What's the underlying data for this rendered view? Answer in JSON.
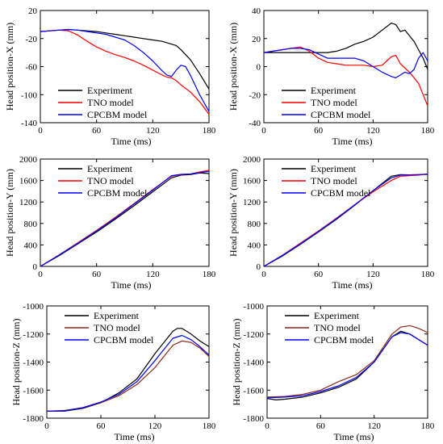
{
  "chart_data": [
    {
      "type": "line",
      "xlabel": "Time (ms)",
      "ylabel": "Head position-X (mm)",
      "xlim": [
        0,
        180
      ],
      "ylim": [
        -140,
        20
      ],
      "xticks": [
        0,
        60,
        120,
        180
      ],
      "yticks": [
        20,
        -20,
        -60,
        -100,
        -140
      ],
      "legend_position": "bottom-left",
      "series": [
        {
          "name": "Experiment",
          "color": "#000000",
          "x": [
            0,
            10,
            20,
            30,
            40,
            50,
            60,
            70,
            80,
            90,
            100,
            110,
            120,
            130,
            140,
            145,
            150,
            160,
            170,
            180
          ],
          "y": [
            -10,
            -9,
            -8,
            -7,
            -8,
            -9,
            -10,
            -12,
            -14,
            -16,
            -18,
            -20,
            -22,
            -24,
            -28,
            -30,
            -36,
            -50,
            -70,
            -92
          ]
        },
        {
          "name": "TNO model",
          "color": "#ff0000",
          "x": [
            0,
            10,
            20,
            30,
            40,
            50,
            60,
            70,
            80,
            90,
            100,
            110,
            120,
            130,
            135,
            140,
            145,
            150,
            160,
            170,
            180
          ],
          "y": [
            -10,
            -9,
            -8,
            -9,
            -15,
            -24,
            -32,
            -38,
            -43,
            -47,
            -52,
            -58,
            -65,
            -72,
            -75,
            -76,
            -80,
            -86,
            -96,
            -110,
            -128
          ]
        },
        {
          "name": "CPCBM model",
          "color": "#0000ff",
          "x": [
            0,
            10,
            20,
            30,
            40,
            50,
            60,
            70,
            80,
            90,
            100,
            110,
            120,
            130,
            135,
            140,
            145,
            150,
            155,
            160,
            170,
            180
          ],
          "y": [
            -10,
            -9,
            -8,
            -7,
            -8,
            -10,
            -12,
            -14,
            -18,
            -22,
            -30,
            -40,
            -52,
            -66,
            -72,
            -74,
            -65,
            -58,
            -60,
            -72,
            -100,
            -124
          ]
        }
      ]
    },
    {
      "type": "line",
      "xlabel": "Time (ms)",
      "ylabel": "Head position-X (mm)",
      "xlim": [
        0,
        180
      ],
      "ylim": [
        -40,
        40
      ],
      "xticks": [
        0,
        60,
        120,
        180
      ],
      "yticks": [
        40,
        20,
        0,
        -20,
        -40
      ],
      "legend_position": "bottom-left",
      "series": [
        {
          "name": "Experiment",
          "color": "#000000",
          "x": [
            0,
            20,
            40,
            60,
            70,
            80,
            90,
            100,
            110,
            120,
            130,
            140,
            145,
            150,
            155,
            160,
            165,
            170,
            175,
            180
          ],
          "y": [
            10,
            10,
            10,
            10,
            10,
            11,
            13,
            16,
            18,
            21,
            26,
            31,
            30,
            25,
            26,
            22,
            18,
            12,
            6,
            -2
          ]
        },
        {
          "name": "TNO model",
          "color": "#ff0000",
          "x": [
            0,
            10,
            20,
            30,
            40,
            50,
            60,
            70,
            80,
            90,
            100,
            110,
            120,
            130,
            135,
            140,
            145,
            150,
            160,
            170,
            180
          ],
          "y": [
            10,
            11,
            12,
            13,
            14,
            11,
            6,
            3,
            2,
            1,
            1,
            1,
            0,
            1,
            4,
            7,
            8,
            2,
            -4,
            -12,
            -28
          ]
        },
        {
          "name": "CPCBM model",
          "color": "#0000ff",
          "x": [
            0,
            10,
            20,
            30,
            40,
            50,
            60,
            70,
            80,
            90,
            100,
            110,
            120,
            130,
            140,
            145,
            150,
            155,
            160,
            165,
            170,
            175,
            180
          ],
          "y": [
            10,
            11,
            12,
            13,
            13,
            12,
            9,
            6,
            6,
            6,
            6,
            4,
            0,
            -4,
            -7,
            -8,
            -6,
            -4,
            -5,
            -2,
            6,
            10,
            4
          ]
        }
      ]
    },
    {
      "type": "line",
      "xlabel": "Time (ms)",
      "ylabel": "Head position-Y (mm)",
      "xlim": [
        0,
        180
      ],
      "ylim": [
        0,
        2000
      ],
      "xticks": [
        0,
        60,
        120,
        180
      ],
      "yticks": [
        2000,
        1600,
        1200,
        800,
        400,
        0
      ],
      "legend_position": "top-left",
      "series": [
        {
          "name": "Experiment",
          "color": "#000000",
          "x": [
            0,
            20,
            40,
            60,
            80,
            100,
            120,
            140,
            150,
            160,
            170,
            180
          ],
          "y": [
            0,
            200,
            420,
            640,
            880,
            1130,
            1390,
            1650,
            1700,
            1710,
            1740,
            1730
          ]
        },
        {
          "name": "TNO model",
          "color": "#ff0000",
          "x": [
            0,
            20,
            40,
            60,
            80,
            100,
            120,
            140,
            150,
            160,
            170,
            180
          ],
          "y": [
            0,
            215,
            440,
            670,
            915,
            1170,
            1430,
            1680,
            1710,
            1720,
            1760,
            1790
          ]
        },
        {
          "name": "CPCBM model",
          "color": "#0000ff",
          "x": [
            0,
            20,
            40,
            60,
            80,
            100,
            120,
            140,
            150,
            160,
            170,
            180
          ],
          "y": [
            0,
            210,
            430,
            660,
            900,
            1160,
            1420,
            1690,
            1715,
            1720,
            1745,
            1770
          ]
        }
      ]
    },
    {
      "type": "line",
      "xlabel": "Time (ms)",
      "ylabel": "Head position-Y (mm)",
      "xlim": [
        0,
        180
      ],
      "ylim": [
        0,
        2000
      ],
      "xticks": [
        0,
        60,
        120,
        180
      ],
      "yticks": [
        2000,
        1600,
        1200,
        800,
        400,
        0
      ],
      "legend_position": "top-left",
      "series": [
        {
          "name": "Experiment",
          "color": "#000000",
          "x": [
            0,
            20,
            40,
            60,
            80,
            100,
            120,
            140,
            150,
            160,
            170,
            180
          ],
          "y": [
            0,
            190,
            410,
            640,
            880,
            1140,
            1410,
            1680,
            1710,
            1705,
            1710,
            1715
          ]
        },
        {
          "name": "TNO model",
          "color": "#ff0000",
          "x": [
            0,
            20,
            40,
            60,
            80,
            100,
            120,
            140,
            150,
            160,
            170,
            180
          ],
          "y": [
            0,
            205,
            430,
            660,
            900,
            1150,
            1390,
            1600,
            1680,
            1690,
            1700,
            1720
          ]
        },
        {
          "name": "CPCBM model",
          "color": "#0000ff",
          "x": [
            0,
            20,
            40,
            60,
            80,
            100,
            120,
            140,
            150,
            160,
            170,
            180
          ],
          "y": [
            0,
            200,
            420,
            650,
            890,
            1150,
            1410,
            1650,
            1700,
            1705,
            1710,
            1720
          ]
        }
      ]
    },
    {
      "type": "line",
      "xlabel": "Time (ms)",
      "ylabel": "Head position-Z (mm)",
      "xlim": [
        0,
        180
      ],
      "ylim": [
        -1800,
        -1000
      ],
      "xticks": [
        0,
        60,
        120,
        180
      ],
      "yticks": [
        -1000,
        -1200,
        -1400,
        -1600,
        -1800
      ],
      "legend_position": "top-left",
      "series": [
        {
          "name": "Experiment",
          "color": "#000000",
          "x": [
            0,
            20,
            40,
            60,
            80,
            100,
            120,
            140,
            145,
            150,
            160,
            170,
            180
          ],
          "y": [
            -1750,
            -1750,
            -1730,
            -1690,
            -1620,
            -1520,
            -1340,
            -1180,
            -1160,
            -1160,
            -1200,
            -1250,
            -1290
          ]
        },
        {
          "name": "TNO model",
          "color": "#8b2a1a",
          "x": [
            0,
            20,
            40,
            60,
            80,
            100,
            120,
            140,
            150,
            160,
            170,
            180
          ],
          "y": [
            -1750,
            -1745,
            -1725,
            -1690,
            -1640,
            -1560,
            -1440,
            -1280,
            -1250,
            -1260,
            -1300,
            -1360
          ]
        },
        {
          "name": "CPCBM model",
          "color": "#0000ff",
          "x": [
            0,
            20,
            40,
            60,
            80,
            100,
            120,
            140,
            150,
            160,
            170,
            180
          ],
          "y": [
            -1750,
            -1748,
            -1725,
            -1685,
            -1630,
            -1540,
            -1390,
            -1230,
            -1210,
            -1240,
            -1290,
            -1350
          ]
        }
      ]
    },
    {
      "type": "line",
      "xlabel": "Time (ms)",
      "ylabel": "Head position-Z (mm)",
      "xlim": [
        0,
        180
      ],
      "ylim": [
        -1800,
        -1000
      ],
      "xticks": [
        0,
        60,
        120,
        180
      ],
      "yticks": [
        -1000,
        -1200,
        -1400,
        -1600,
        -1800
      ],
      "legend_position": "top-left",
      "series": [
        {
          "name": "Experiment",
          "color": "#000000",
          "x": [
            0,
            10,
            20,
            40,
            60,
            80,
            100,
            120,
            140,
            150,
            160,
            170,
            180
          ],
          "y": [
            -1660,
            -1670,
            -1665,
            -1650,
            -1620,
            -1580,
            -1520,
            -1400,
            -1220,
            -1180,
            -1200,
            -1240,
            -1280
          ]
        },
        {
          "name": "TNO model",
          "color": "#8b2a1a",
          "x": [
            0,
            20,
            40,
            60,
            80,
            100,
            120,
            140,
            150,
            160,
            170,
            180
          ],
          "y": [
            -1650,
            -1645,
            -1630,
            -1600,
            -1540,
            -1490,
            -1390,
            -1200,
            -1150,
            -1140,
            -1160,
            -1190
          ]
        },
        {
          "name": "CPCBM model",
          "color": "#0000ff",
          "x": [
            0,
            20,
            40,
            60,
            80,
            100,
            120,
            140,
            150,
            160,
            170,
            180
          ],
          "y": [
            -1655,
            -1650,
            -1640,
            -1610,
            -1570,
            -1510,
            -1400,
            -1220,
            -1190,
            -1200,
            -1240,
            -1280
          ]
        }
      ]
    }
  ]
}
